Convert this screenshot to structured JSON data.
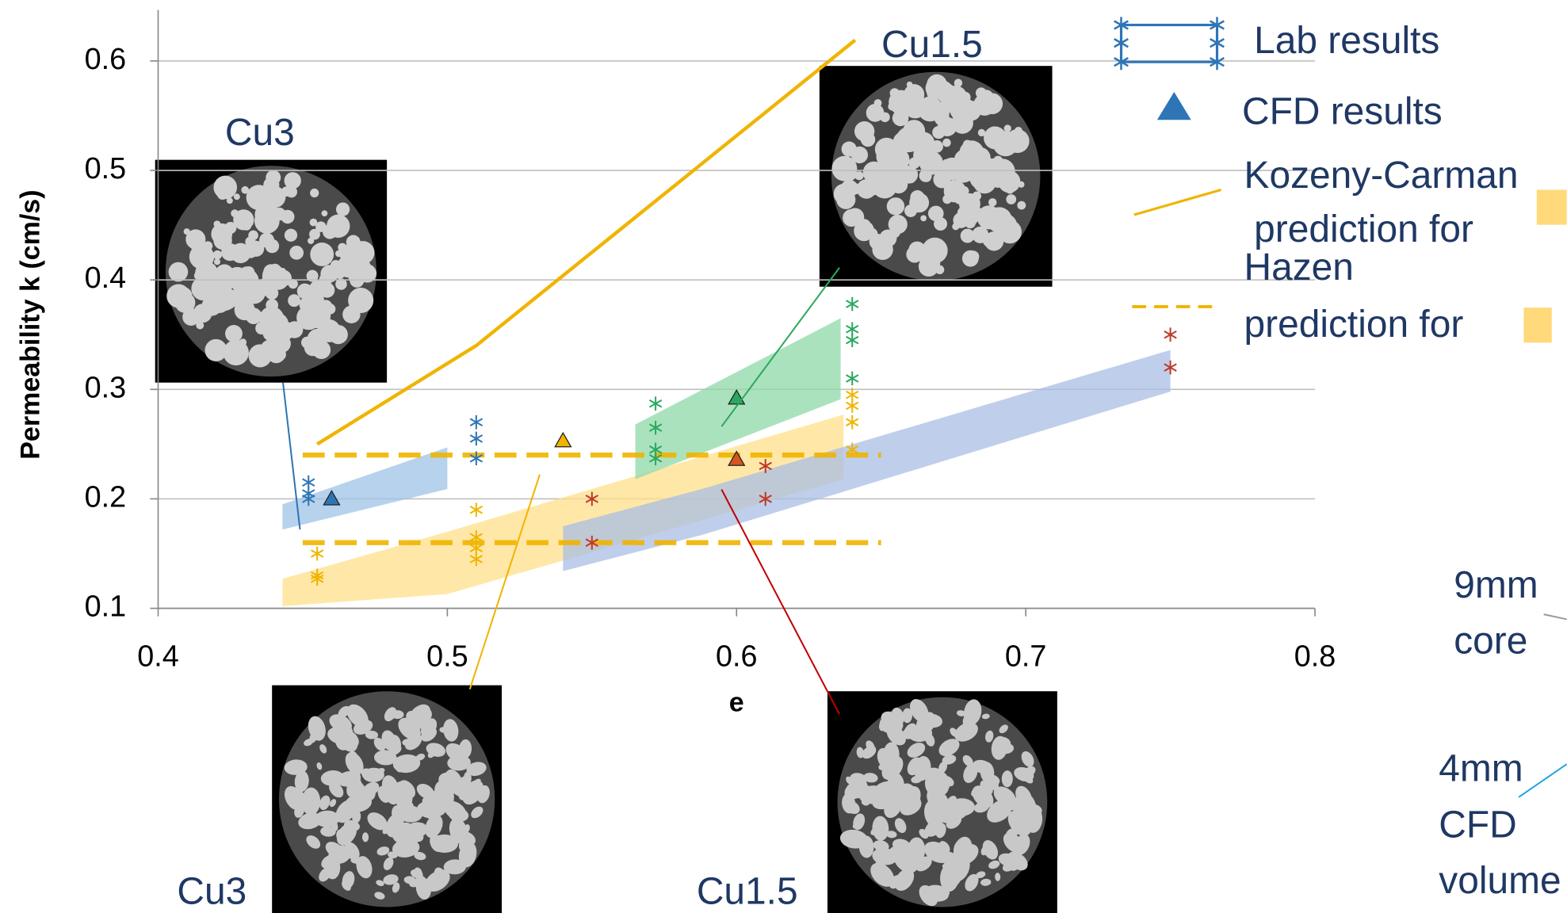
{
  "chart_data": {
    "type": "scatter",
    "x_label": "e",
    "y_label": "Permeability k (cm/s)",
    "xlim": [
      0.4,
      0.8
    ],
    "xticks": [
      0.4,
      0.5,
      0.6,
      0.7,
      0.8
    ],
    "ylim": [
      0.1,
      0.65
    ],
    "yticks": [
      0.1,
      0.2,
      0.3,
      0.4,
      0.5,
      0.6
    ],
    "grid": true,
    "series": [
      {
        "type": "band",
        "color": "#9dc3e6",
        "x": [
          0.443,
          0.5
        ],
        "lower": [
          0.172,
          0.209
        ],
        "upper": [
          0.195,
          0.247
        ]
      },
      {
        "type": "band",
        "color": "#ffe08a",
        "x": [
          0.443,
          0.5,
          0.637
        ],
        "lower": [
          0.102,
          0.113,
          0.218
        ],
        "upper": [
          0.127,
          0.17,
          0.277
        ]
      },
      {
        "type": "band",
        "color": "#8fd8a8",
        "x": [
          0.565,
          0.636
        ],
        "lower": [
          0.218,
          0.291
        ],
        "upper": [
          0.268,
          0.365
        ]
      },
      {
        "type": "band",
        "color": "#a9bde4",
        "x": [
          0.54,
          0.588,
          0.75
        ],
        "lower": [
          0.134,
          0.167,
          0.298
        ],
        "upper": [
          0.175,
          0.209,
          0.336
        ]
      },
      {
        "type": "dashed",
        "color": "#f0b400",
        "x": [
          0.45,
          0.65
        ],
        "values": [
          0.24,
          0.24
        ]
      },
      {
        "type": "dashed",
        "color": "#f0b400",
        "x": [
          0.45,
          0.65
        ],
        "values": [
          0.16,
          0.16
        ]
      },
      {
        "type": "line",
        "color": "#f0b400",
        "x": [
          0.455,
          0.51,
          0.641
        ],
        "values": [
          0.25,
          0.34,
          0.619
        ]
      },
      {
        "type": "asterisk",
        "color": "#2e75b6",
        "x": [
          0.452,
          0.452,
          0.452,
          0.51,
          0.51,
          0.51
        ],
        "values": [
          0.215,
          0.205,
          0.2,
          0.27,
          0.255,
          0.237
        ]
      },
      {
        "type": "asterisk",
        "color": "#f0b400",
        "x": [
          0.455,
          0.455,
          0.455,
          0.51,
          0.51,
          0.51,
          0.51,
          0.64,
          0.64,
          0.64,
          0.64
        ],
        "values": [
          0.15,
          0.13,
          0.127,
          0.19,
          0.165,
          0.155,
          0.145,
          0.295,
          0.285,
          0.27,
          0.245
        ]
      },
      {
        "type": "asterisk",
        "color": "#2aa860",
        "x": [
          0.572,
          0.572,
          0.572,
          0.572,
          0.64,
          0.64,
          0.64,
          0.64
        ],
        "values": [
          0.287,
          0.265,
          0.245,
          0.237,
          0.378,
          0.355,
          0.345,
          0.31
        ]
      },
      {
        "type": "asterisk",
        "color": "#c0392b",
        "x": [
          0.55,
          0.55,
          0.61,
          0.61,
          0.75,
          0.75
        ],
        "values": [
          0.2,
          0.16,
          0.23,
          0.2,
          0.35,
          0.32
        ]
      },
      {
        "type": "triangle",
        "color": "#2e75b6",
        "x": [
          0.46
        ],
        "values": [
          0.2
        ]
      },
      {
        "type": "triangle",
        "color": "#f0b400",
        "x": [
          0.54
        ],
        "values": [
          0.253
        ]
      },
      {
        "type": "triangle",
        "color": "#2aa860",
        "x": [
          0.6
        ],
        "values": [
          0.292
        ]
      },
      {
        "type": "triangle",
        "color": "#d9541e",
        "x": [
          0.6
        ],
        "values": [
          0.236
        ]
      }
    ],
    "legend": [
      {
        "lines": [
          "Lab results"
        ]
      },
      {
        "lines": [
          "CFD results"
        ]
      },
      {
        "lines": [
          "Kozeny-Carman",
          "prediction for"
        ]
      },
      {
        "lines": [
          "Hazen",
          "prediction for"
        ]
      }
    ],
    "annotations": [
      {
        "lines": [
          "Cu3"
        ]
      },
      {
        "lines": [
          "Cu1.5"
        ]
      },
      {
        "lines": [
          "Cu3"
        ]
      },
      {
        "lines": [
          "Cu1.5"
        ]
      },
      {
        "lines": [
          "9mm",
          "core"
        ]
      },
      {
        "lines": [
          "4mm",
          "CFD",
          "volume"
        ]
      }
    ]
  }
}
